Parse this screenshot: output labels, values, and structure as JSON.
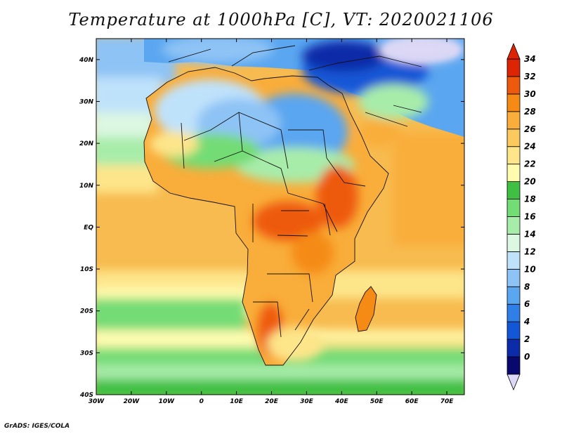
{
  "title": "Temperature at 1000hPa [C], VT: 2020021106",
  "credit": "GrADS: IGES/COLA",
  "map": {
    "lat_labels": [
      "40N",
      "30N",
      "20N",
      "10N",
      "EQ",
      "10S",
      "20S",
      "30S",
      "40S"
    ],
    "lon_labels": [
      "30W",
      "20W",
      "10W",
      "0",
      "10E",
      "20E",
      "30E",
      "40E",
      "50E",
      "60E",
      "70E"
    ],
    "extent": {
      "lon_min": -30,
      "lon_max": 75,
      "lat_min": -40,
      "lat_max": 45
    }
  },
  "colorbar": {
    "labels": [
      "34",
      "32",
      "30",
      "28",
      "26",
      "24",
      "22",
      "20",
      "18",
      "16",
      "14",
      "12",
      "10",
      "8",
      "6",
      "4",
      "2",
      "0"
    ],
    "colors": [
      "#08086e",
      "#0b2ba8",
      "#1457d6",
      "#2f7fe6",
      "#5aa6f0",
      "#8ec3f5",
      "#bfe2fb",
      "#dcf7e2",
      "#a8ecaa",
      "#73dc74",
      "#3fc043",
      "#fffcb0",
      "#fde58a",
      "#fbca5e",
      "#f9ad3a",
      "#f58b14",
      "#ee5a0d",
      "#dd2405"
    ],
    "under_color": "#dcd8f5",
    "over_color": "#dd2405"
  }
}
